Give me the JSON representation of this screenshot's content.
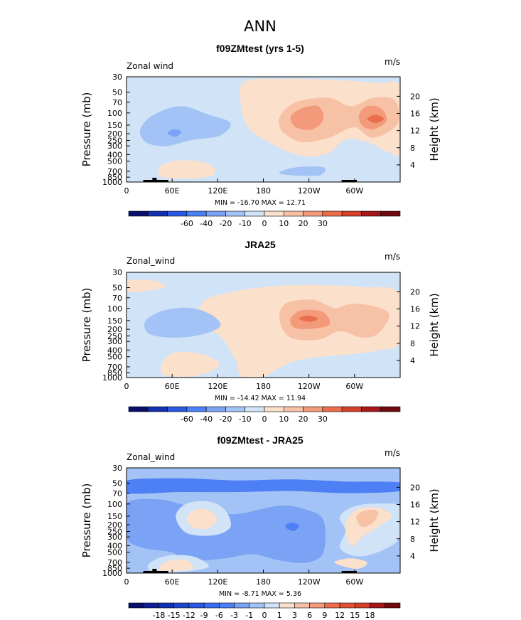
{
  "chart_data": {
    "type": "heatmap",
    "title": "ANN",
    "x_ticks": [
      "0",
      "60E",
      "120E",
      "180",
      "120W",
      "60W"
    ],
    "x_tick_lon": [
      0,
      60,
      120,
      180,
      240,
      300
    ],
    "xlim": [
      0,
      360
    ],
    "p_ticks": [
      "30",
      "50",
      "70",
      "100",
      "150",
      "200",
      "250",
      "300",
      "400",
      "500",
      "700",
      "850",
      "1000"
    ],
    "p_tick_values": [
      30,
      50,
      70,
      100,
      150,
      200,
      250,
      300,
      400,
      500,
      700,
      850,
      1000
    ],
    "ylim_mb": [
      1000,
      30
    ],
    "height_ticks": [
      "4",
      "8",
      "12",
      "16",
      "20"
    ],
    "height_values_km": [
      4,
      8,
      12,
      16,
      20
    ],
    "ylabel_left": "Pressure (mb)",
    "ylabel_right": "Height (km)",
    "panels": [
      {
        "title": "f09ZMtest (yrs 1-5)",
        "left_label": "Zonal wind",
        "units": "m/s",
        "min_max": "MIN = -16.70   MAX =  12.71",
        "min": -16.7,
        "max": 12.71,
        "colorbar_labels": [
          "-60",
          "-40",
          "-20",
          "-10",
          "0",
          "10",
          "20",
          "30"
        ],
        "colorbar_colors": [
          "#0a0f6e",
          "#1230b0",
          "#2a58e0",
          "#4d7ff5",
          "#7aa3f5",
          "#a3c2f5",
          "#d1e3f7",
          "#fbe0cc",
          "#f7c1a6",
          "#f29a79",
          "#ea6e4b",
          "#d3402b",
          "#a4171b",
          "#700a0e"
        ]
      },
      {
        "title": "JRA25",
        "left_label": "Zonal_wind",
        "units": "m/s",
        "min_max": "MIN = -14.42   MAX =  11.94",
        "min": -14.42,
        "max": 11.94,
        "colorbar_labels": [
          "-60",
          "-40",
          "-20",
          "-10",
          "0",
          "10",
          "20",
          "30"
        ],
        "colorbar_colors": [
          "#0a0f6e",
          "#1230b0",
          "#2a58e0",
          "#4d7ff5",
          "#7aa3f5",
          "#a3c2f5",
          "#d1e3f7",
          "#fbe0cc",
          "#f7c1a6",
          "#f29a79",
          "#ea6e4b",
          "#d3402b",
          "#a4171b",
          "#700a0e"
        ]
      },
      {
        "title": "f09ZMtest - JRA25",
        "left_label": "Zonal_wind",
        "units": "m/s",
        "min_max": "MIN = -8.71   MAX =  5.36",
        "min": -8.71,
        "max": 5.36,
        "colorbar_labels": [
          "-18",
          "-15",
          "-12",
          "-9",
          "-6",
          "-3",
          "-1",
          "0",
          "1",
          "3",
          "6",
          "9",
          "12",
          "15",
          "18"
        ],
        "colorbar_colors": [
          "#0a0f6e",
          "#0f1f96",
          "#1230b0",
          "#1c45cc",
          "#2a58e0",
          "#3b6cef",
          "#4d7ff5",
          "#7aa3f5",
          "#a3c2f5",
          "#d1e3f7",
          "#fbe0cc",
          "#f7c1a6",
          "#f29a79",
          "#ea6e4b",
          "#df5236",
          "#d3402b",
          "#a4171b",
          "#700a0e"
        ]
      }
    ]
  }
}
